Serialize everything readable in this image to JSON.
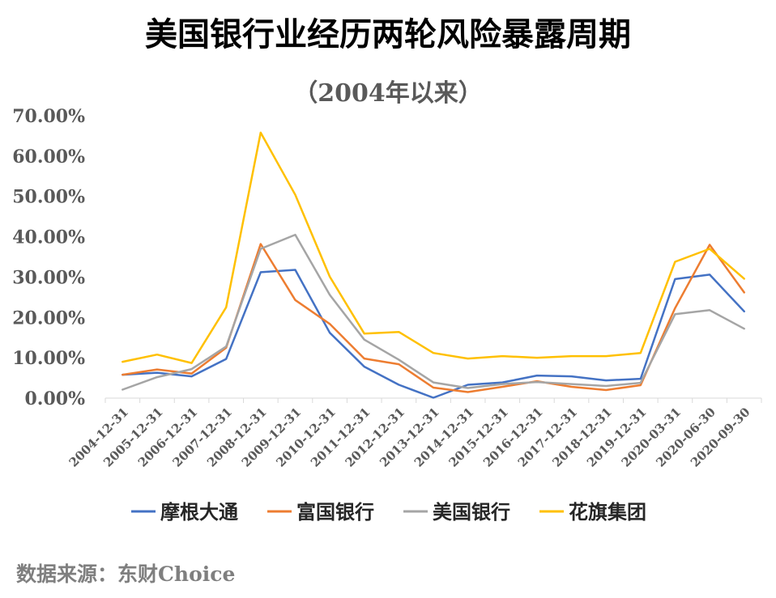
{
  "chart_data": {
    "type": "line",
    "title": "美国银行业经历两轮风险暴露周期",
    "subtitle": "（2004年以来）",
    "xlabel": "",
    "ylabel": "",
    "ylim": [
      0,
      70
    ],
    "y_ticks": [
      "0.00%",
      "10.00%",
      "20.00%",
      "30.00%",
      "40.00%",
      "50.00%",
      "60.00%",
      "70.00%"
    ],
    "grid": false,
    "legend_position": "bottom",
    "categories": [
      "2004-12-31",
      "2005-12-31",
      "2006-12-31",
      "2007-12-31",
      "2008-12-31",
      "2009-12-31",
      "2010-12-31",
      "2011-12-31",
      "2012-12-31",
      "2013-12-31",
      "2014-12-31",
      "2015-12-31",
      "2016-12-31",
      "2017-12-31",
      "2018-12-31",
      "2019-12-31",
      "2020-03-31",
      "2020-06-30",
      "2020-09-30"
    ],
    "series": [
      {
        "name": "摩根大通",
        "color": "#4472C4",
        "values": [
          5.8,
          6.3,
          5.4,
          9.7,
          31.2,
          31.8,
          16.2,
          7.8,
          3.3,
          0.1,
          3.3,
          3.9,
          5.6,
          5.4,
          4.4,
          4.8,
          29.5,
          30.6,
          21.5
        ]
      },
      {
        "name": "富国银行",
        "color": "#ED7D31",
        "values": [
          5.8,
          7.1,
          6.1,
          12.5,
          38.2,
          24.3,
          18.4,
          9.8,
          8.4,
          2.6,
          1.5,
          2.8,
          4.2,
          2.8,
          2.0,
          3.2,
          22.3,
          38.0,
          26.2
        ]
      },
      {
        "name": "美国银行",
        "color": "#A5A5A5",
        "values": [
          2.1,
          5.2,
          7.2,
          12.8,
          37.0,
          40.5,
          25.6,
          14.5,
          9.5,
          3.9,
          2.5,
          3.5,
          4.0,
          3.5,
          3.0,
          3.8,
          20.8,
          21.8,
          17.2
        ]
      },
      {
        "name": "花旗集团",
        "color": "#FFC000",
        "values": [
          9.0,
          10.8,
          8.7,
          22.5,
          65.8,
          50.4,
          30.1,
          16.0,
          16.4,
          11.2,
          9.8,
          10.4,
          10.0,
          10.4,
          10.4,
          11.2,
          33.8,
          37.0,
          29.6
        ]
      }
    ]
  },
  "source_text": "数据来源：东财Choice"
}
